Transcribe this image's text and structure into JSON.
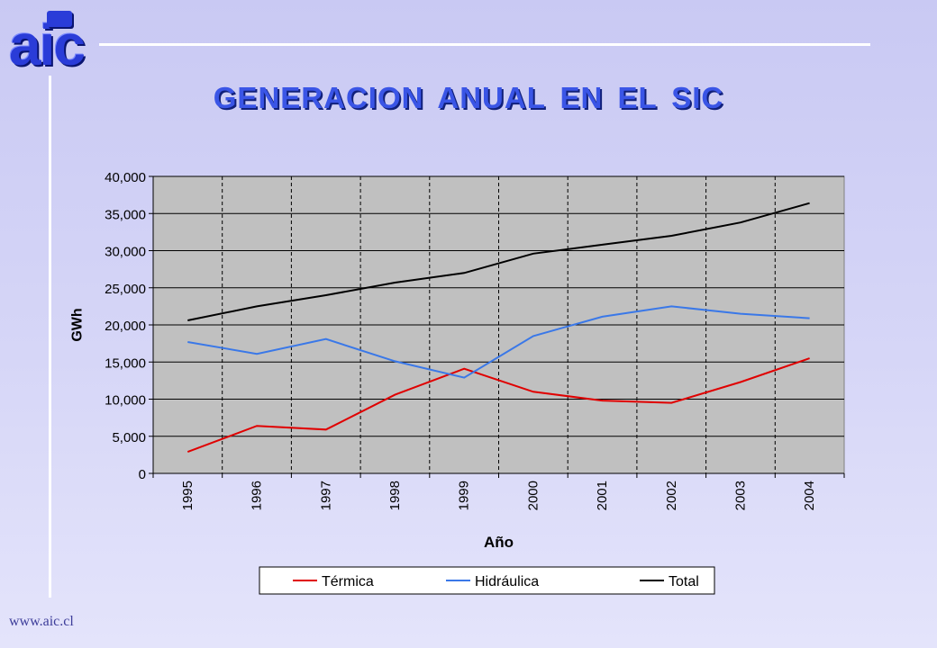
{
  "logo": {
    "text": "aic"
  },
  "footer": {
    "url": "www.aic.cl"
  },
  "chart_data": {
    "type": "line",
    "title": "GENERACION ANUAL EN EL SIC",
    "xlabel": "Año",
    "ylabel": "GWh",
    "categories": [
      "1995",
      "1996",
      "1997",
      "1998",
      "1999",
      "2000",
      "2001",
      "2002",
      "2003",
      "2004"
    ],
    "ylim": [
      0,
      40000
    ],
    "yticks": [
      0,
      5000,
      10000,
      15000,
      20000,
      25000,
      30000,
      35000,
      40000
    ],
    "ytick_labels": [
      "0",
      "5,000",
      "10,000",
      "15,000",
      "20,000",
      "25,000",
      "30,000",
      "35,000",
      "40,000"
    ],
    "grid": "horizontal solid, vertical dashed",
    "legend_position": "bottom",
    "series": [
      {
        "name": "Térmica",
        "color": "#e00000",
        "values": [
          2900,
          6400,
          5900,
          10600,
          14100,
          11000,
          9800,
          9500,
          12300,
          15500
        ]
      },
      {
        "name": "Hidráulica",
        "color": "#3a78e8",
        "values": [
          17700,
          16100,
          18100,
          15100,
          12900,
          18500,
          21100,
          22500,
          21500,
          20900
        ]
      },
      {
        "name": "Total",
        "color": "#000000",
        "values": [
          20600,
          22500,
          24000,
          25700,
          27000,
          29600,
          30800,
          32000,
          33800,
          36400
        ]
      }
    ]
  }
}
